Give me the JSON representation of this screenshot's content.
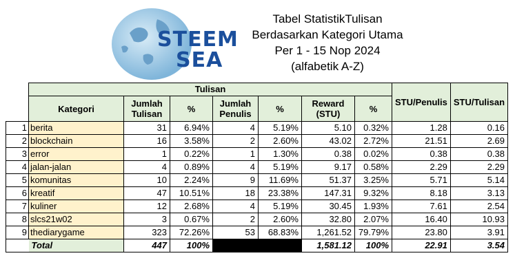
{
  "logo": {
    "line1": "STEEM",
    "line2": "SEA",
    "icon": "globe-icon"
  },
  "title": {
    "line1": "Tabel StatistikTulisan",
    "line2": "Berdasarkan Kategori Utama",
    "line3": "Per 1 - 15 Nop 2024",
    "line4": "(alfabetik A-Z)"
  },
  "headers": {
    "group": "Tulisan",
    "kategori": "Kategori",
    "jumlah_tulisan_1": "Jumlah",
    "jumlah_tulisan_2": "Tulisan",
    "pct": "%",
    "jumlah_penulis_1": "Jumlah",
    "jumlah_penulis_2": "Penulis",
    "pct2": "%",
    "reward_1": "Reward",
    "reward_2": "(STU)",
    "pct3": "%",
    "stu_penulis": "STU/Penulis",
    "stu_tulisan": "STU/Tulisan"
  },
  "rows": [
    {
      "no": "1",
      "kategori": "berita",
      "jt": "31",
      "pt": "6.94%",
      "jp": "4",
      "pp": "5.19%",
      "rw": "5.10",
      "pr": "0.32%",
      "sp": "1.28",
      "st": "0.16"
    },
    {
      "no": "2",
      "kategori": "blockchain",
      "jt": "16",
      "pt": "3.58%",
      "jp": "2",
      "pp": "2.60%",
      "rw": "43.02",
      "pr": "2.72%",
      "sp": "21.51",
      "st": "2.69"
    },
    {
      "no": "3",
      "kategori": "error",
      "jt": "1",
      "pt": "0.22%",
      "jp": "1",
      "pp": "1.30%",
      "rw": "0.38",
      "pr": "0.02%",
      "sp": "0.38",
      "st": "0.38"
    },
    {
      "no": "4",
      "kategori": "jalan-jalan",
      "jt": "4",
      "pt": "0.89%",
      "jp": "4",
      "pp": "5.19%",
      "rw": "9.17",
      "pr": "0.58%",
      "sp": "2.29",
      "st": "2.29"
    },
    {
      "no": "5",
      "kategori": "komunitas",
      "jt": "10",
      "pt": "2.24%",
      "jp": "9",
      "pp": "11.69%",
      "rw": "51.37",
      "pr": "3.25%",
      "sp": "5.71",
      "st": "5.14"
    },
    {
      "no": "6",
      "kategori": "kreatif",
      "jt": "47",
      "pt": "10.51%",
      "jp": "18",
      "pp": "23.38%",
      "rw": "147.31",
      "pr": "9.32%",
      "sp": "8.18",
      "st": "3.13"
    },
    {
      "no": "7",
      "kategori": "kuliner",
      "jt": "12",
      "pt": "2.68%",
      "jp": "4",
      "pp": "5.19%",
      "rw": "30.45",
      "pr": "1.93%",
      "sp": "7.61",
      "st": "2.54"
    },
    {
      "no": "8",
      "kategori": "slcs21w02",
      "jt": "3",
      "pt": "0.67%",
      "jp": "2",
      "pp": "2.60%",
      "rw": "32.80",
      "pr": "2.07%",
      "sp": "16.40",
      "st": "10.93"
    },
    {
      "no": "9",
      "kategori": "thediarygame",
      "jt": "323",
      "pt": "72.26%",
      "jp": "53",
      "pp": "68.83%",
      "rw": "1,261.52",
      "pr": "79.79%",
      "sp": "23.80",
      "st": "3.91"
    }
  ],
  "total": {
    "label": "Total",
    "jt": "447",
    "pt": "100%",
    "rw": "1,581.12",
    "pr": "100%",
    "sp": "22.91",
    "st": "3.54"
  },
  "colors": {
    "header_green": "#e2efda",
    "category_yellow": "#fff2cc",
    "logo_blue": "#1b4f9c"
  }
}
